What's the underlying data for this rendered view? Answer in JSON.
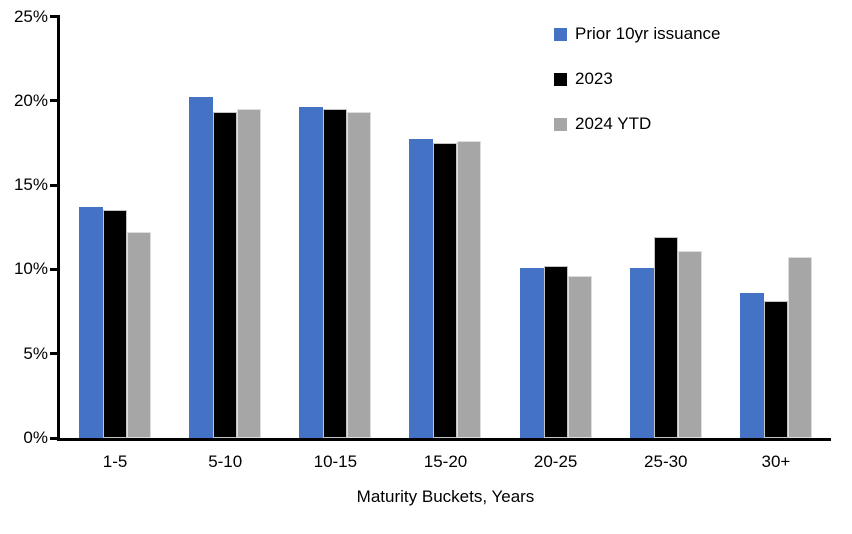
{
  "chart_data": {
    "type": "bar",
    "title": "",
    "xlabel": "Maturity Buckets, Years",
    "ylabel": "",
    "ylim": [
      0,
      25
    ],
    "grid": false,
    "legend_position": "top-right-inside",
    "axis_color": "#000000",
    "background_color": "#ffffff",
    "yticks": [
      {
        "value": 25,
        "label": "25%"
      },
      {
        "value": 20,
        "label": "20%"
      },
      {
        "value": 15,
        "label": "15%"
      },
      {
        "value": 10,
        "label": "10%"
      },
      {
        "value": 5,
        "label": "5%"
      },
      {
        "value": 0,
        "label": "0%"
      }
    ],
    "categories": [
      "1-5",
      "5-10",
      "10-15",
      "15-20",
      "20-25",
      "25-30",
      "30+"
    ],
    "series": [
      {
        "name": "Prior 10yr issuance",
        "color": "#4472C4",
        "values": [
          13.7,
          20.2,
          19.6,
          17.7,
          10.1,
          10.1,
          8.6
        ]
      },
      {
        "name": "2023",
        "color": "#000000",
        "values": [
          13.5,
          19.3,
          19.5,
          17.5,
          10.2,
          11.9,
          8.1
        ]
      },
      {
        "name": "2024 YTD",
        "color": "#A6A6A6",
        "values": [
          12.2,
          19.5,
          19.3,
          17.6,
          9.6,
          11.1,
          10.7
        ]
      }
    ]
  }
}
